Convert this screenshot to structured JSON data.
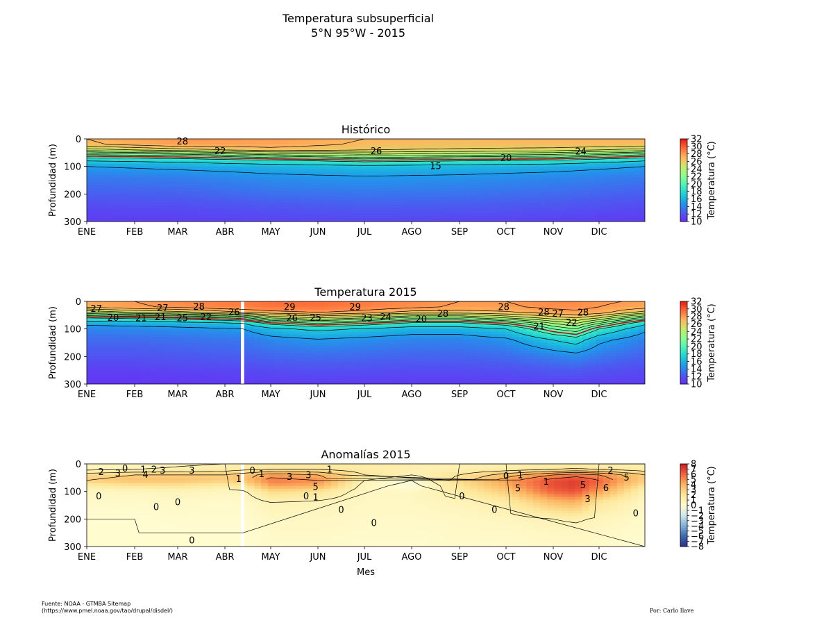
{
  "figure": {
    "title_line1": "Temperatura subsuperficial",
    "title_line2": "5°N 95°W - 2015",
    "source_line1": "Fuente: NOAA - GTMBA Sitemap",
    "source_line2": "(https://www.pmel.noaa.gov/tao/drupal/disdel/)",
    "author": "Por: Carlo Ilave"
  },
  "colors": {
    "rainbow": [
      "#6a2cf5",
      "#4a5df0",
      "#1e9aea",
      "#1ed0d6",
      "#4ef3b8",
      "#8efc8c",
      "#c8ea6a",
      "#ffb45e",
      "#ff6a38",
      "#e8180f"
    ],
    "anomaly": [
      "#2b2f8a",
      "#3f67b0",
      "#7fb0d6",
      "#cfe6ef",
      "#fffcd0",
      "#fde79a",
      "#fcb560",
      "#f2643e",
      "#c81b22"
    ],
    "contour_line": "#000000",
    "isotherm_20": "#b01010"
  },
  "chart_data": [
    {
      "type": "heatmap",
      "title": "Histórico",
      "ylabel": "Profundidad (m)",
      "xlabel": "",
      "x_tick_labels": [
        "ENE",
        "FEB",
        "MAR",
        "ABR",
        "MAY",
        "JUN",
        "JUL",
        "AGO",
        "SEP",
        "OCT",
        "NOV",
        "DIC"
      ],
      "y_ticks": [
        0,
        100,
        200,
        300
      ],
      "ylim": [
        300,
        0
      ],
      "xlim_month_index": [
        0,
        12
      ],
      "colorbar": {
        "label": "Temperatura (°C)",
        "ticks": [
          "10",
          "12",
          "14",
          "16",
          "18",
          "20",
          "22",
          "24",
          "26",
          "28",
          "30",
          "32"
        ],
        "range": [
          10,
          32
        ]
      },
      "profile": {
        "depth": [
          0,
          20,
          40,
          60,
          80,
          100,
          140,
          200,
          250,
          300
        ],
        "month": [
          0,
          2,
          4,
          6,
          8,
          10,
          12
        ],
        "temperature": [
          [
            27.0,
            26.8,
            24.5,
            20.5,
            17.0,
            15.0,
            13.6,
            12.5,
            11.5,
            10.8
          ],
          [
            28.0,
            27.8,
            25.5,
            21.0,
            17.5,
            15.5,
            13.8,
            12.6,
            11.6,
            10.9
          ],
          [
            27.8,
            27.6,
            26.5,
            22.5,
            18.5,
            16.0,
            14.5,
            13.2,
            12.0,
            11.2
          ],
          [
            27.0,
            26.8,
            26.0,
            23.5,
            19.5,
            16.5,
            14.8,
            13.4,
            12.3,
            11.3
          ],
          [
            26.8,
            26.6,
            25.8,
            23.0,
            19.0,
            16.2,
            14.6,
            13.3,
            12.2,
            11.2
          ],
          [
            27.0,
            26.8,
            25.5,
            22.5,
            18.5,
            15.8,
            14.2,
            13.0,
            12.0,
            11.0
          ],
          [
            27.0,
            26.8,
            24.5,
            20.5,
            17.0,
            15.0,
            13.6,
            12.5,
            11.5,
            10.8
          ]
        ]
      },
      "missing_month_range": [],
      "contour_labels": [
        {
          "text": "28",
          "month": 2.1,
          "depth": 10
        },
        {
          "text": "22",
          "month": 2.9,
          "depth": 45
        },
        {
          "text": "26",
          "month": 6.25,
          "depth": 45
        },
        {
          "text": "15",
          "month": 7.5,
          "depth": 100
        },
        {
          "text": "20",
          "month": 9.0,
          "depth": 70
        },
        {
          "text": "24",
          "month": 10.6,
          "depth": 47
        }
      ]
    },
    {
      "type": "heatmap",
      "title": "Temperatura 2015",
      "ylabel": "Profundidad (m)",
      "xlabel": "",
      "x_tick_labels": [
        "ENE",
        "FEB",
        "MAR",
        "ABR",
        "MAY",
        "JUN",
        "JUL",
        "AGO",
        "SEP",
        "OCT",
        "NOV",
        "DIC"
      ],
      "y_ticks": [
        0,
        100,
        200,
        300
      ],
      "ylim": [
        300,
        0
      ],
      "xlim_month_index": [
        0,
        12
      ],
      "colorbar": {
        "label": "Temperatura (°C)",
        "ticks": [
          "10",
          "12",
          "14",
          "16",
          "18",
          "20",
          "22",
          "24",
          "26",
          "28",
          "30",
          "32"
        ],
        "range": [
          10,
          32
        ]
      },
      "profile": {
        "depth": [
          0,
          20,
          40,
          60,
          80,
          100,
          140,
          200,
          250,
          300
        ],
        "month": [
          0,
          1,
          2,
          3,
          3.4,
          4,
          5,
          6,
          7,
          8,
          9,
          10,
          10.5,
          11,
          12
        ],
        "temperature": [
          [
            27.5,
            27.2,
            24.0,
            19.0,
            15.5,
            14.0,
            13.0,
            12.0,
            11.0,
            10.5
          ],
          [
            28.0,
            27.8,
            25.0,
            19.5,
            15.8,
            14.2,
            13.0,
            12.0,
            11.0,
            10.5
          ],
          [
            28.5,
            28.2,
            25.5,
            20.0,
            16.0,
            14.5,
            13.2,
            12.2,
            11.2,
            10.6
          ],
          [
            29.0,
            28.8,
            26.5,
            21.0,
            16.5,
            14.8,
            13.4,
            12.4,
            11.3,
            10.7
          ],
          [
            29.0,
            28.8,
            27.0,
            21.5,
            17.0,
            15.0,
            13.5,
            12.5,
            11.4,
            10.7
          ],
          [
            29.5,
            29.2,
            27.5,
            24.0,
            19.5,
            16.5,
            14.2,
            12.8,
            11.6,
            10.8
          ],
          [
            29.5,
            29.3,
            28.0,
            25.0,
            21.0,
            17.5,
            14.8,
            13.0,
            11.8,
            10.9
          ],
          [
            29.0,
            28.8,
            27.5,
            24.0,
            20.0,
            16.8,
            14.4,
            12.9,
            11.7,
            10.8
          ],
          [
            28.5,
            28.3,
            26.5,
            22.5,
            18.5,
            16.0,
            14.0,
            12.7,
            11.6,
            10.8
          ],
          [
            28.0,
            27.8,
            26.5,
            22.5,
            18.5,
            16.0,
            14.0,
            12.7,
            11.6,
            10.8
          ],
          [
            28.0,
            27.8,
            26.8,
            24.0,
            20.0,
            17.0,
            14.6,
            13.0,
            11.8,
            10.9
          ],
          [
            28.5,
            28.3,
            27.5,
            25.5,
            23.0,
            21.0,
            17.0,
            13.8,
            12.2,
            11.0
          ],
          [
            28.5,
            28.3,
            27.8,
            26.0,
            24.0,
            22.0,
            18.0,
            14.2,
            12.3,
            11.0
          ],
          [
            28.2,
            28.0,
            27.5,
            25.0,
            22.0,
            19.0,
            15.5,
            13.5,
            12.0,
            10.9
          ],
          [
            27.8,
            27.5,
            25.5,
            21.5,
            17.5,
            15.5,
            13.8,
            12.6,
            11.5,
            10.8
          ]
        ]
      },
      "missing_month_range": [
        3.35,
        3.42
      ],
      "contour_labels": [
        {
          "text": "27",
          "month": 0.2,
          "depth": 28
        },
        {
          "text": "27",
          "month": 1.65,
          "depth": 25
        },
        {
          "text": "28",
          "month": 2.45,
          "depth": 20
        },
        {
          "text": "26",
          "month": 3.2,
          "depth": 40
        },
        {
          "text": "29",
          "month": 4.4,
          "depth": 22
        },
        {
          "text": "29",
          "month": 5.8,
          "depth": 22
        },
        {
          "text": "28",
          "month": 7.65,
          "depth": 45
        },
        {
          "text": "28",
          "month": 8.95,
          "depth": 22
        },
        {
          "text": "28",
          "month": 9.8,
          "depth": 40
        },
        {
          "text": "27",
          "month": 10.1,
          "depth": 45
        },
        {
          "text": "28",
          "month": 10.65,
          "depth": 42
        },
        {
          "text": "20",
          "month": 0.55,
          "depth": 60
        },
        {
          "text": "21",
          "month": 1.15,
          "depth": 62
        },
        {
          "text": "21",
          "month": 1.6,
          "depth": 58
        },
        {
          "text": "25",
          "month": 2.1,
          "depth": 62
        },
        {
          "text": "22",
          "month": 2.6,
          "depth": 58
        },
        {
          "text": "26",
          "month": 4.45,
          "depth": 62
        },
        {
          "text": "25",
          "month": 4.95,
          "depth": 60
        },
        {
          "text": "23",
          "month": 6.05,
          "depth": 62
        },
        {
          "text": "24",
          "month": 6.45,
          "depth": 58
        },
        {
          "text": "20",
          "month": 7.2,
          "depth": 65
        },
        {
          "text": "21",
          "month": 9.7,
          "depth": 92
        },
        {
          "text": "22",
          "month": 10.4,
          "depth": 78
        }
      ]
    },
    {
      "type": "heatmap",
      "title": "Anomalías 2015",
      "ylabel": "Profundidad (m)",
      "xlabel": "Mes",
      "x_tick_labels": [
        "ENE",
        "FEB",
        "MAR",
        "ABR",
        "MAY",
        "JUN",
        "JUL",
        "AGO",
        "SEP",
        "OCT",
        "NOV",
        "DIC"
      ],
      "y_ticks": [
        0,
        100,
        200,
        300
      ],
      "ylim": [
        300,
        0
      ],
      "xlim_month_index": [
        0,
        12
      ],
      "colorbar": {
        "label": "Temperatura (°C)",
        "ticks": [
          "−8",
          "−7",
          "−6",
          "−5",
          "−4",
          "−3",
          "−2",
          "−1",
          "0",
          "1",
          "2",
          "3",
          "4",
          "5",
          "6",
          "7",
          "8"
        ],
        "range": [
          -8,
          8
        ]
      },
      "profile": {
        "depth": [
          0,
          20,
          40,
          60,
          80,
          100,
          140,
          200,
          250,
          300
        ],
        "month": [
          0,
          1,
          2,
          3,
          3.4,
          4,
          5,
          6,
          7,
          8,
          9,
          10,
          10.5,
          11,
          12
        ],
        "temperature": [
          [
            0.5,
            0.8,
            2.5,
            3.0,
            1.5,
            0.5,
            0.2,
            0.0,
            0.0,
            0.0
          ],
          [
            0.5,
            1.0,
            3.0,
            3.5,
            2.0,
            0.6,
            0.2,
            0.0,
            0.0,
            0.0
          ],
          [
            0.8,
            1.2,
            3.0,
            3.5,
            2.0,
            0.8,
            0.3,
            0.1,
            0.0,
            0.0
          ],
          [
            1.0,
            1.5,
            3.0,
            3.0,
            1.5,
            0.6,
            0.2,
            0.1,
            0.0,
            0.0
          ],
          [
            1.2,
            1.8,
            3.5,
            3.5,
            2.0,
            0.8,
            0.3,
            0.1,
            0.0,
            0.0
          ],
          [
            1.5,
            2.0,
            4.5,
            5.5,
            4.5,
            2.5,
            1.0,
            0.5,
            0.3,
            0.2
          ],
          [
            1.5,
            2.0,
            4.0,
            5.0,
            4.0,
            2.0,
            0.8,
            0.5,
            0.3,
            0.2
          ],
          [
            1.5,
            1.5,
            2.0,
            1.0,
            0.5,
            0.5,
            0.5,
            0.3,
            0.2,
            0.1
          ],
          [
            1.2,
            1.2,
            1.0,
            0.0,
            -0.5,
            0.5,
            0.5,
            0.3,
            0.2,
            0.1
          ],
          [
            1.0,
            1.2,
            2.0,
            2.5,
            2.0,
            1.5,
            0.8,
            0.4,
            0.3,
            0.2
          ],
          [
            1.0,
            1.5,
            3.5,
            4.5,
            4.0,
            3.0,
            1.5,
            0.6,
            0.3,
            0.2
          ],
          [
            1.2,
            2.0,
            5.0,
            6.5,
            6.5,
            6.0,
            3.5,
            1.0,
            0.5,
            0.3
          ],
          [
            1.2,
            2.2,
            5.5,
            7.0,
            7.0,
            6.5,
            4.0,
            1.2,
            0.5,
            0.3
          ],
          [
            1.0,
            2.0,
            5.0,
            6.0,
            5.5,
            4.5,
            2.0,
            0.8,
            0.4,
            0.2
          ],
          [
            1.0,
            1.5,
            3.0,
            3.0,
            2.0,
            1.0,
            0.5,
            0.2,
            0.1,
            0.0
          ]
        ]
      },
      "missing_month_range": [
        3.35,
        3.42
      ],
      "contour_labels": [
        {
          "text": "2",
          "month": 0.3,
          "depth": 30
        },
        {
          "text": "3",
          "month": 0.65,
          "depth": 35
        },
        {
          "text": "0",
          "month": 0.8,
          "depth": 18
        },
        {
          "text": "1",
          "month": 1.2,
          "depth": 22
        },
        {
          "text": "4",
          "month": 1.25,
          "depth": 40
        },
        {
          "text": "2",
          "month": 1.45,
          "depth": 22
        },
        {
          "text": "3",
          "month": 1.65,
          "depth": 25
        },
        {
          "text": "3",
          "month": 2.3,
          "depth": 25
        },
        {
          "text": "1",
          "month": 3.3,
          "depth": 55
        },
        {
          "text": "0",
          "month": 0.25,
          "depth": 118
        },
        {
          "text": "0",
          "month": 1.5,
          "depth": 158
        },
        {
          "text": "0",
          "month": 2.0,
          "depth": 140
        },
        {
          "text": "0",
          "month": 2.3,
          "depth": 278
        },
        {
          "text": "0",
          "month": 3.6,
          "depth": 25
        },
        {
          "text": "1",
          "month": 3.8,
          "depth": 38
        },
        {
          "text": "3",
          "month": 4.4,
          "depth": 48
        },
        {
          "text": "3",
          "month": 4.8,
          "depth": 42
        },
        {
          "text": "1",
          "month": 5.25,
          "depth": 22
        },
        {
          "text": "5",
          "month": 4.95,
          "depth": 85
        },
        {
          "text": "0",
          "month": 4.75,
          "depth": 118
        },
        {
          "text": "1",
          "month": 4.95,
          "depth": 122
        },
        {
          "text": "0",
          "month": 5.5,
          "depth": 168
        },
        {
          "text": "0",
          "month": 6.2,
          "depth": 215
        },
        {
          "text": "0",
          "month": 8.05,
          "depth": 118
        },
        {
          "text": "0",
          "month": 8.75,
          "depth": 168
        },
        {
          "text": "0",
          "month": 9.0,
          "depth": 45
        },
        {
          "text": "1",
          "month": 9.3,
          "depth": 42
        },
        {
          "text": "5",
          "month": 9.25,
          "depth": 90
        },
        {
          "text": "1",
          "month": 9.85,
          "depth": 65
        },
        {
          "text": "5",
          "month": 10.65,
          "depth": 78
        },
        {
          "text": "3",
          "month": 10.75,
          "depth": 128
        },
        {
          "text": "2",
          "month": 11.25,
          "depth": 25
        },
        {
          "text": "5",
          "month": 11.6,
          "depth": 50
        },
        {
          "text": "6",
          "month": 11.15,
          "depth": 88
        },
        {
          "text": "0",
          "month": 11.8,
          "depth": 180
        }
      ]
    }
  ]
}
